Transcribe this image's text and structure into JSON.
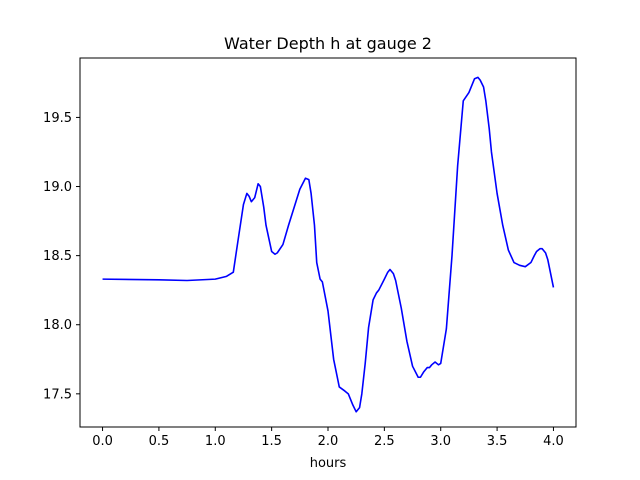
{
  "chart_data": {
    "type": "line",
    "title": "Water Depth h at gauge 2",
    "xlabel": "hours",
    "ylabel": "",
    "xlim": [
      -0.2,
      4.2
    ],
    "ylim": [
      17.26,
      19.93
    ],
    "xticks": [
      "0.0",
      "0.5",
      "1.0",
      "1.5",
      "2.0",
      "2.5",
      "3.0",
      "3.5",
      "4.0"
    ],
    "yticks": [
      "17.5",
      "18.0",
      "18.5",
      "19.0",
      "19.5"
    ],
    "grid": false,
    "series": [
      {
        "color": "#0000ff",
        "x": [
          0.0,
          0.5,
          0.75,
          1.0,
          1.1,
          1.16,
          1.2,
          1.25,
          1.28,
          1.3,
          1.32,
          1.35,
          1.38,
          1.4,
          1.43,
          1.45,
          1.5,
          1.53,
          1.55,
          1.6,
          1.65,
          1.7,
          1.75,
          1.8,
          1.83,
          1.85,
          1.88,
          1.9,
          1.93,
          1.95,
          2.0,
          2.05,
          2.1,
          2.15,
          2.18,
          2.22,
          2.25,
          2.28,
          2.3,
          2.33,
          2.36,
          2.4,
          2.43,
          2.45,
          2.5,
          2.53,
          2.55,
          2.58,
          2.6,
          2.65,
          2.7,
          2.75,
          2.8,
          2.82,
          2.85,
          2.88,
          2.9,
          2.92,
          2.95,
          2.98,
          3.0,
          3.05,
          3.1,
          3.15,
          3.2,
          3.25,
          3.3,
          3.33,
          3.35,
          3.38,
          3.4,
          3.43,
          3.45,
          3.5,
          3.55,
          3.6,
          3.65,
          3.7,
          3.75,
          3.8,
          3.83,
          3.85,
          3.88,
          3.9,
          3.93,
          3.95,
          4.0
        ],
        "y": [
          18.33,
          18.325,
          18.32,
          18.33,
          18.35,
          18.38,
          18.6,
          18.87,
          18.95,
          18.93,
          18.89,
          18.92,
          19.02,
          19.0,
          18.85,
          18.72,
          18.53,
          18.51,
          18.52,
          18.58,
          18.72,
          18.85,
          18.98,
          19.06,
          19.05,
          18.95,
          18.72,
          18.45,
          18.33,
          18.31,
          18.1,
          17.75,
          17.55,
          17.52,
          17.5,
          17.42,
          17.37,
          17.4,
          17.5,
          17.72,
          17.98,
          18.18,
          18.23,
          18.25,
          18.33,
          18.38,
          18.4,
          18.37,
          18.32,
          18.12,
          17.88,
          17.7,
          17.62,
          17.62,
          17.66,
          17.69,
          17.69,
          17.71,
          17.73,
          17.71,
          17.72,
          17.97,
          18.5,
          19.15,
          19.62,
          19.68,
          19.78,
          19.79,
          19.77,
          19.72,
          19.62,
          19.42,
          19.25,
          18.95,
          18.72,
          18.54,
          18.45,
          18.43,
          18.42,
          18.45,
          18.5,
          18.53,
          18.55,
          18.55,
          18.52,
          18.47,
          18.27
        ]
      }
    ]
  }
}
